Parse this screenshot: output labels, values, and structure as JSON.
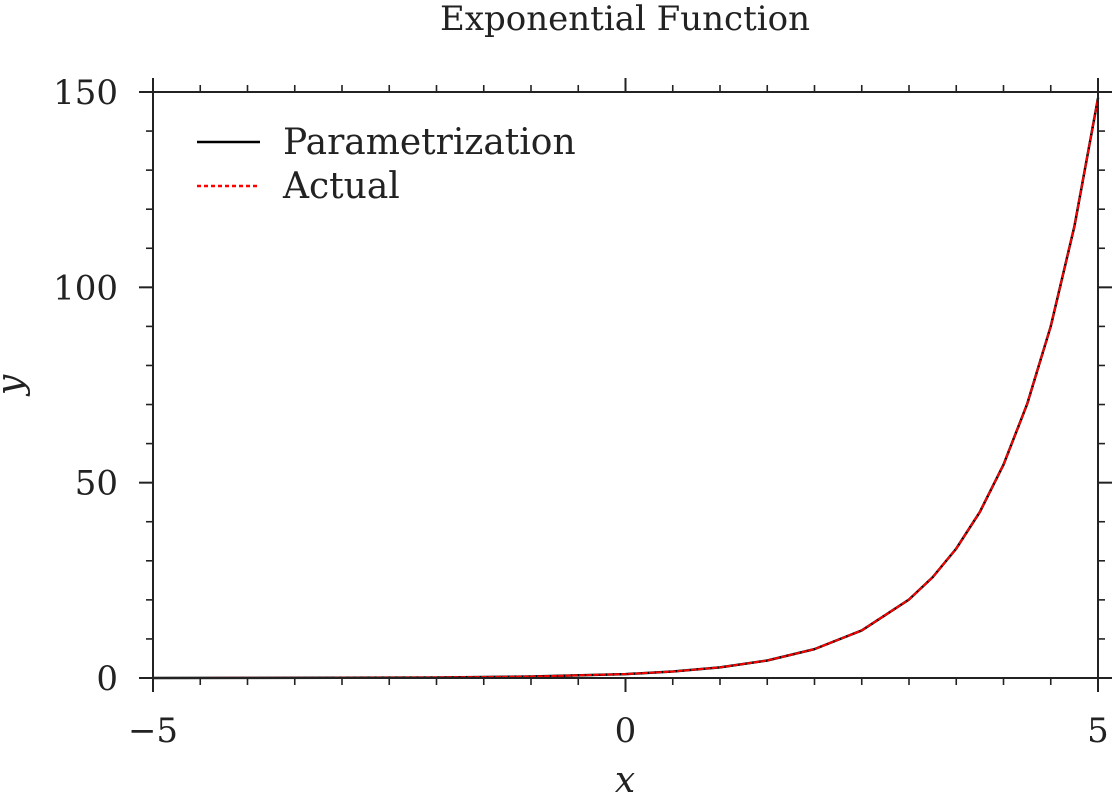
{
  "chart_data": {
    "type": "line",
    "title": "Exponential Function",
    "xlabel": "x",
    "ylabel": "y",
    "xlim": [
      -5,
      5
    ],
    "ylim": [
      0,
      150
    ],
    "x_ticks": [
      -5,
      0,
      5
    ],
    "x_tick_labels": [
      "−5",
      "0",
      "5"
    ],
    "y_ticks": [
      0,
      50,
      100,
      150
    ],
    "y_tick_labels": [
      "0",
      "50",
      "100",
      "150"
    ],
    "grid": false,
    "legend_position": "top-left",
    "series": [
      {
        "name": "Parametrization",
        "style": "solid",
        "color": "#000000",
        "x": [
          -5,
          -4,
          -3,
          -2,
          -1,
          0,
          0.5,
          1,
          1.5,
          2,
          2.5,
          3,
          3.25,
          3.5,
          3.75,
          4,
          4.25,
          4.5,
          4.75,
          5
        ],
        "y": [
          0.01,
          0.02,
          0.05,
          0.14,
          0.37,
          1.0,
          1.65,
          2.72,
          4.48,
          7.39,
          12.18,
          20.09,
          25.79,
          33.12,
          42.52,
          54.6,
          70.11,
          90.02,
          115.58,
          148.41
        ]
      },
      {
        "name": "Actual",
        "style": "dashed",
        "color": "#ff0000",
        "x": [
          -5,
          -4,
          -3,
          -2,
          -1,
          0,
          0.5,
          1,
          1.5,
          2,
          2.5,
          3,
          3.25,
          3.5,
          3.75,
          4,
          4.25,
          4.5,
          4.75,
          5
        ],
        "y": [
          0.01,
          0.02,
          0.05,
          0.14,
          0.37,
          1.0,
          1.65,
          2.72,
          4.48,
          7.39,
          12.18,
          20.09,
          25.79,
          33.12,
          42.52,
          54.6,
          70.11,
          90.02,
          115.58,
          148.41
        ]
      }
    ]
  }
}
